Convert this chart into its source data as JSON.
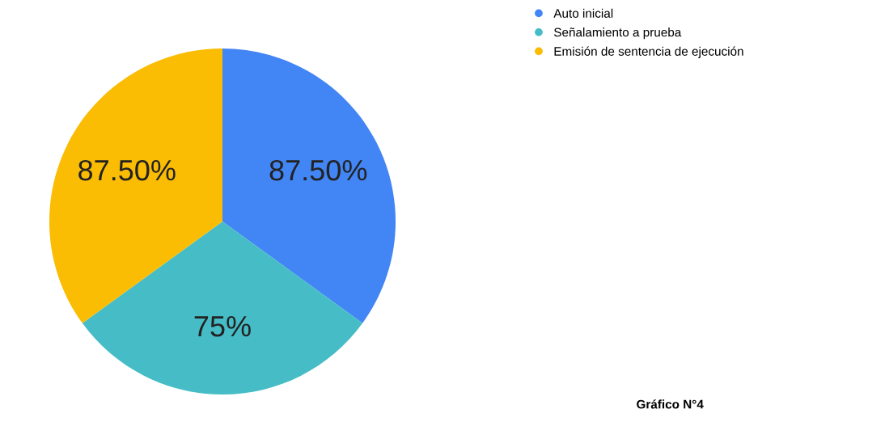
{
  "chart_data": {
    "type": "pie",
    "categories": [
      "Auto inicial",
      "Señalamiento a prueba",
      "Emisión de sentencia de ejecución"
    ],
    "values": [
      87.5,
      75,
      87.5
    ],
    "colors": [
      "#4285f4",
      "#46bdc6",
      "#fbbc04"
    ],
    "value_labels": [
      "87.50%",
      "75%",
      "87.50%"
    ],
    "legend": "top right",
    "annotations": [
      "Gráfico N°4"
    ]
  }
}
